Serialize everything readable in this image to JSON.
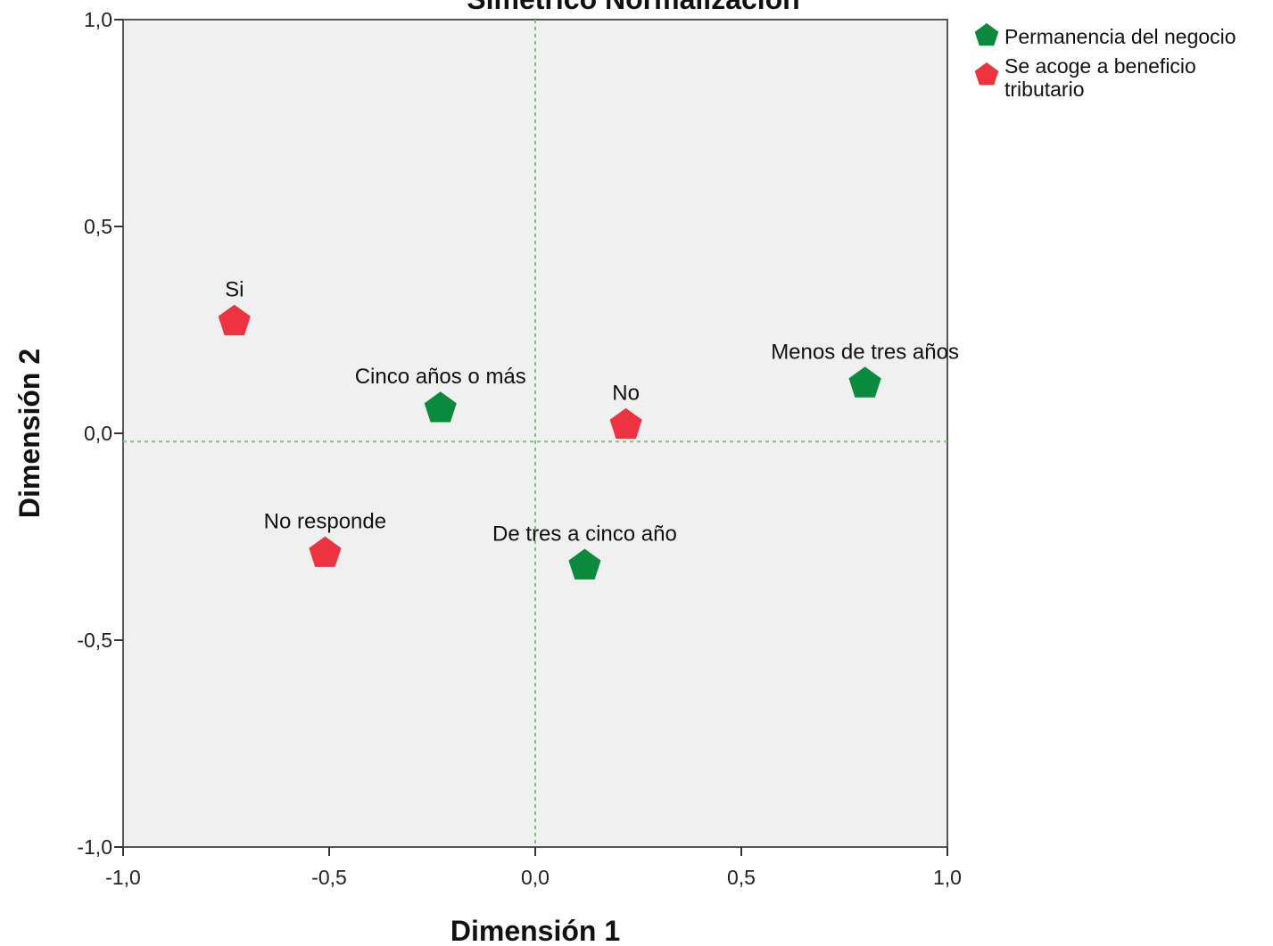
{
  "chart_data": {
    "type": "scatter",
    "title": "Simétrico Normalización",
    "xlabel": "Dimensión 1",
    "ylabel": "Dimensión 2",
    "xlim": [
      -1.0,
      1.0
    ],
    "ylim": [
      -1.0,
      1.0
    ],
    "xticks": [
      "-1,0",
      "-0,5",
      "0,0",
      "0,5",
      "1,0"
    ],
    "yticks": [
      "-1,0",
      "-0,5",
      "0,0",
      "0,5",
      "1,0"
    ],
    "reference_lines": {
      "x": 0.0,
      "y": -0.02
    },
    "legend_position": "top-right",
    "series": [
      {
        "name": "Permanencia del negocio",
        "color": "#0a8a3c",
        "marker": "pentagon",
        "points": [
          {
            "label": "Menos de tres años",
            "x": 0.8,
            "y": 0.12
          },
          {
            "label": "Cinco años o más",
            "x": -0.23,
            "y": 0.06
          },
          {
            "label": "De tres a cinco año",
            "x": 0.12,
            "y": -0.32
          }
        ]
      },
      {
        "name": "Se acoge a beneficio tributario",
        "color": "#ee3340",
        "marker": "pentagon",
        "points": [
          {
            "label": "Si",
            "x": -0.73,
            "y": 0.27
          },
          {
            "label": "No",
            "x": 0.22,
            "y": 0.02
          },
          {
            "label": "No responde",
            "x": -0.51,
            "y": -0.29
          }
        ]
      }
    ]
  }
}
